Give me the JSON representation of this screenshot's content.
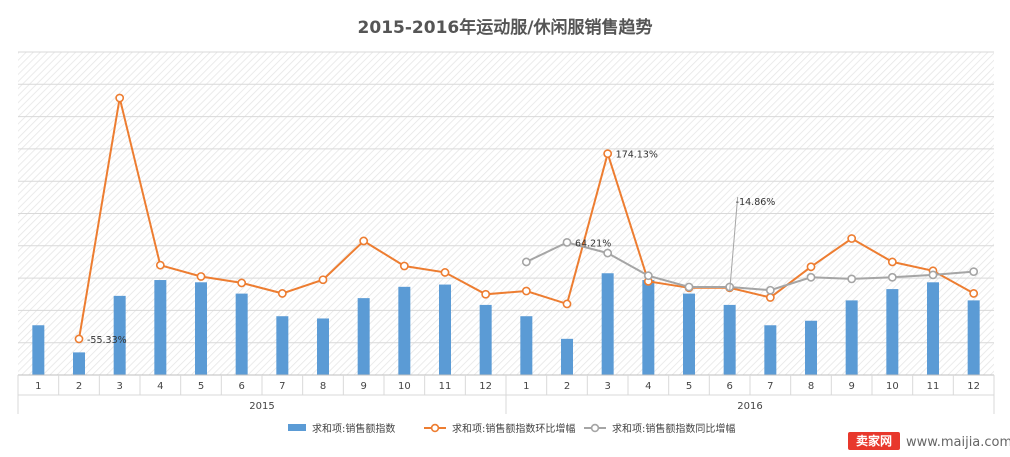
{
  "chart_data": {
    "type": "bar+line",
    "title": "2015-2016年运动服/休闲服销售趋势",
    "groups": [
      {
        "label": "2015",
        "months": [
          "1",
          "2",
          "3",
          "4",
          "5",
          "6",
          "7",
          "8",
          "9",
          "10",
          "11",
          "12"
        ]
      },
      {
        "label": "2016",
        "months": [
          "1",
          "2",
          "3",
          "4",
          "5",
          "6",
          "7",
          "8",
          "9",
          "10",
          "11",
          "12"
        ]
      }
    ],
    "series": [
      {
        "name": "求和项:销售额指数",
        "kind": "bar",
        "color": "#5b9bd5",
        "values": [
          2.2,
          1.0,
          3.5,
          4.2,
          4.1,
          3.6,
          2.6,
          2.5,
          3.4,
          3.9,
          4.0,
          3.1,
          2.6,
          1.6,
          4.5,
          4.2,
          3.6,
          3.1,
          2.2,
          2.4,
          3.3,
          3.8,
          4.1,
          3.3
        ]
      },
      {
        "name": "求和项:销售额指数环比增幅",
        "kind": "line",
        "color": "#ed7d31",
        "values": [
          null,
          -55.33,
          243,
          36,
          22,
          14,
          1,
          18,
          66,
          35,
          27,
          0,
          4,
          -12,
          174.13,
          16,
          8,
          8,
          -4,
          34,
          69,
          40,
          29,
          1
        ]
      },
      {
        "name": "求和项:销售额指数同比增幅",
        "kind": "line",
        "color": "#a5a5a5",
        "values": [
          null,
          null,
          null,
          null,
          null,
          null,
          null,
          null,
          null,
          null,
          null,
          null,
          40,
          64.21,
          51,
          23,
          9,
          9,
          5,
          21,
          19,
          21,
          24,
          28
        ]
      }
    ],
    "annotations": [
      {
        "series": 1,
        "index": 1,
        "text": "-55.33%"
      },
      {
        "series": 1,
        "index": 14,
        "text": "174.13%"
      },
      {
        "series": 2,
        "index": 13,
        "text": "64.21%"
      },
      {
        "text": "-14.86%"
      }
    ],
    "legend_position": "bottom",
    "grid": true
  },
  "watermark": {
    "badge": "卖家网",
    "url": "www.maijia.com"
  }
}
